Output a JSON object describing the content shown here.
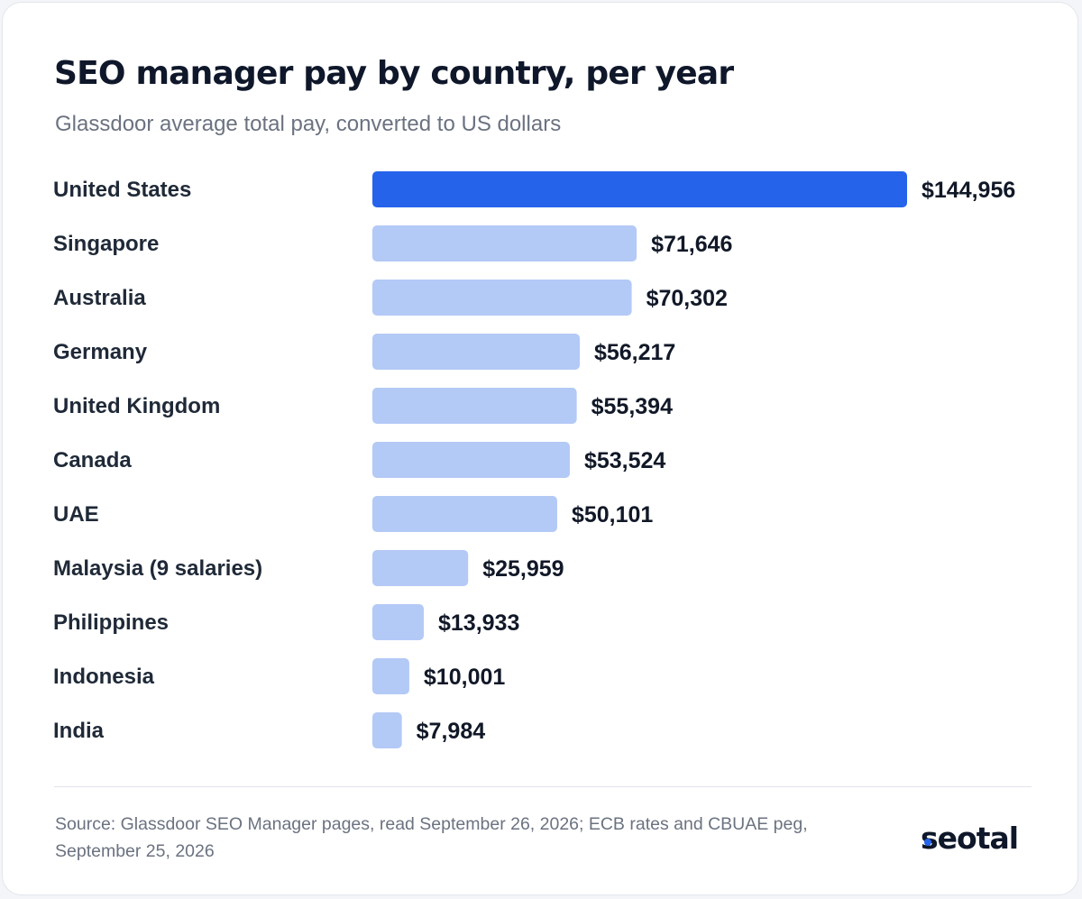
{
  "header": {
    "title": "SEO manager pay by country, per year",
    "subtitle": "Glassdoor average total pay, converted to US dollars"
  },
  "chart_data": {
    "type": "bar",
    "orientation": "horizontal",
    "categories": [
      "United States",
      "Singapore",
      "Australia",
      "Germany",
      "United Kingdom",
      "Canada",
      "UAE",
      "Malaysia (9 salaries)",
      "Philippines",
      "Indonesia",
      "India"
    ],
    "values": [
      144956,
      71646,
      70302,
      56217,
      55394,
      53524,
      50101,
      25959,
      13933,
      10001,
      7984
    ],
    "value_labels": [
      "$144,956",
      "$71,646",
      "$70,302",
      "$56,217",
      "$55,394",
      "$53,524",
      "$50,101",
      "$25,959",
      "$13,933",
      "$10,001",
      "$7,984"
    ],
    "highlight_index": 0,
    "colors": {
      "highlight": "#2563eb",
      "default": "#b3c9f6"
    },
    "xlim": [
      0,
      144956
    ],
    "grid": false,
    "legend": "none"
  },
  "footer": {
    "source": "Source: Glassdoor SEO Manager pages, read September 26, 2026; ECB rates and CBUAE peg, September 25, 2026",
    "logo": "seotal",
    "logo_accent": "#2563eb"
  }
}
